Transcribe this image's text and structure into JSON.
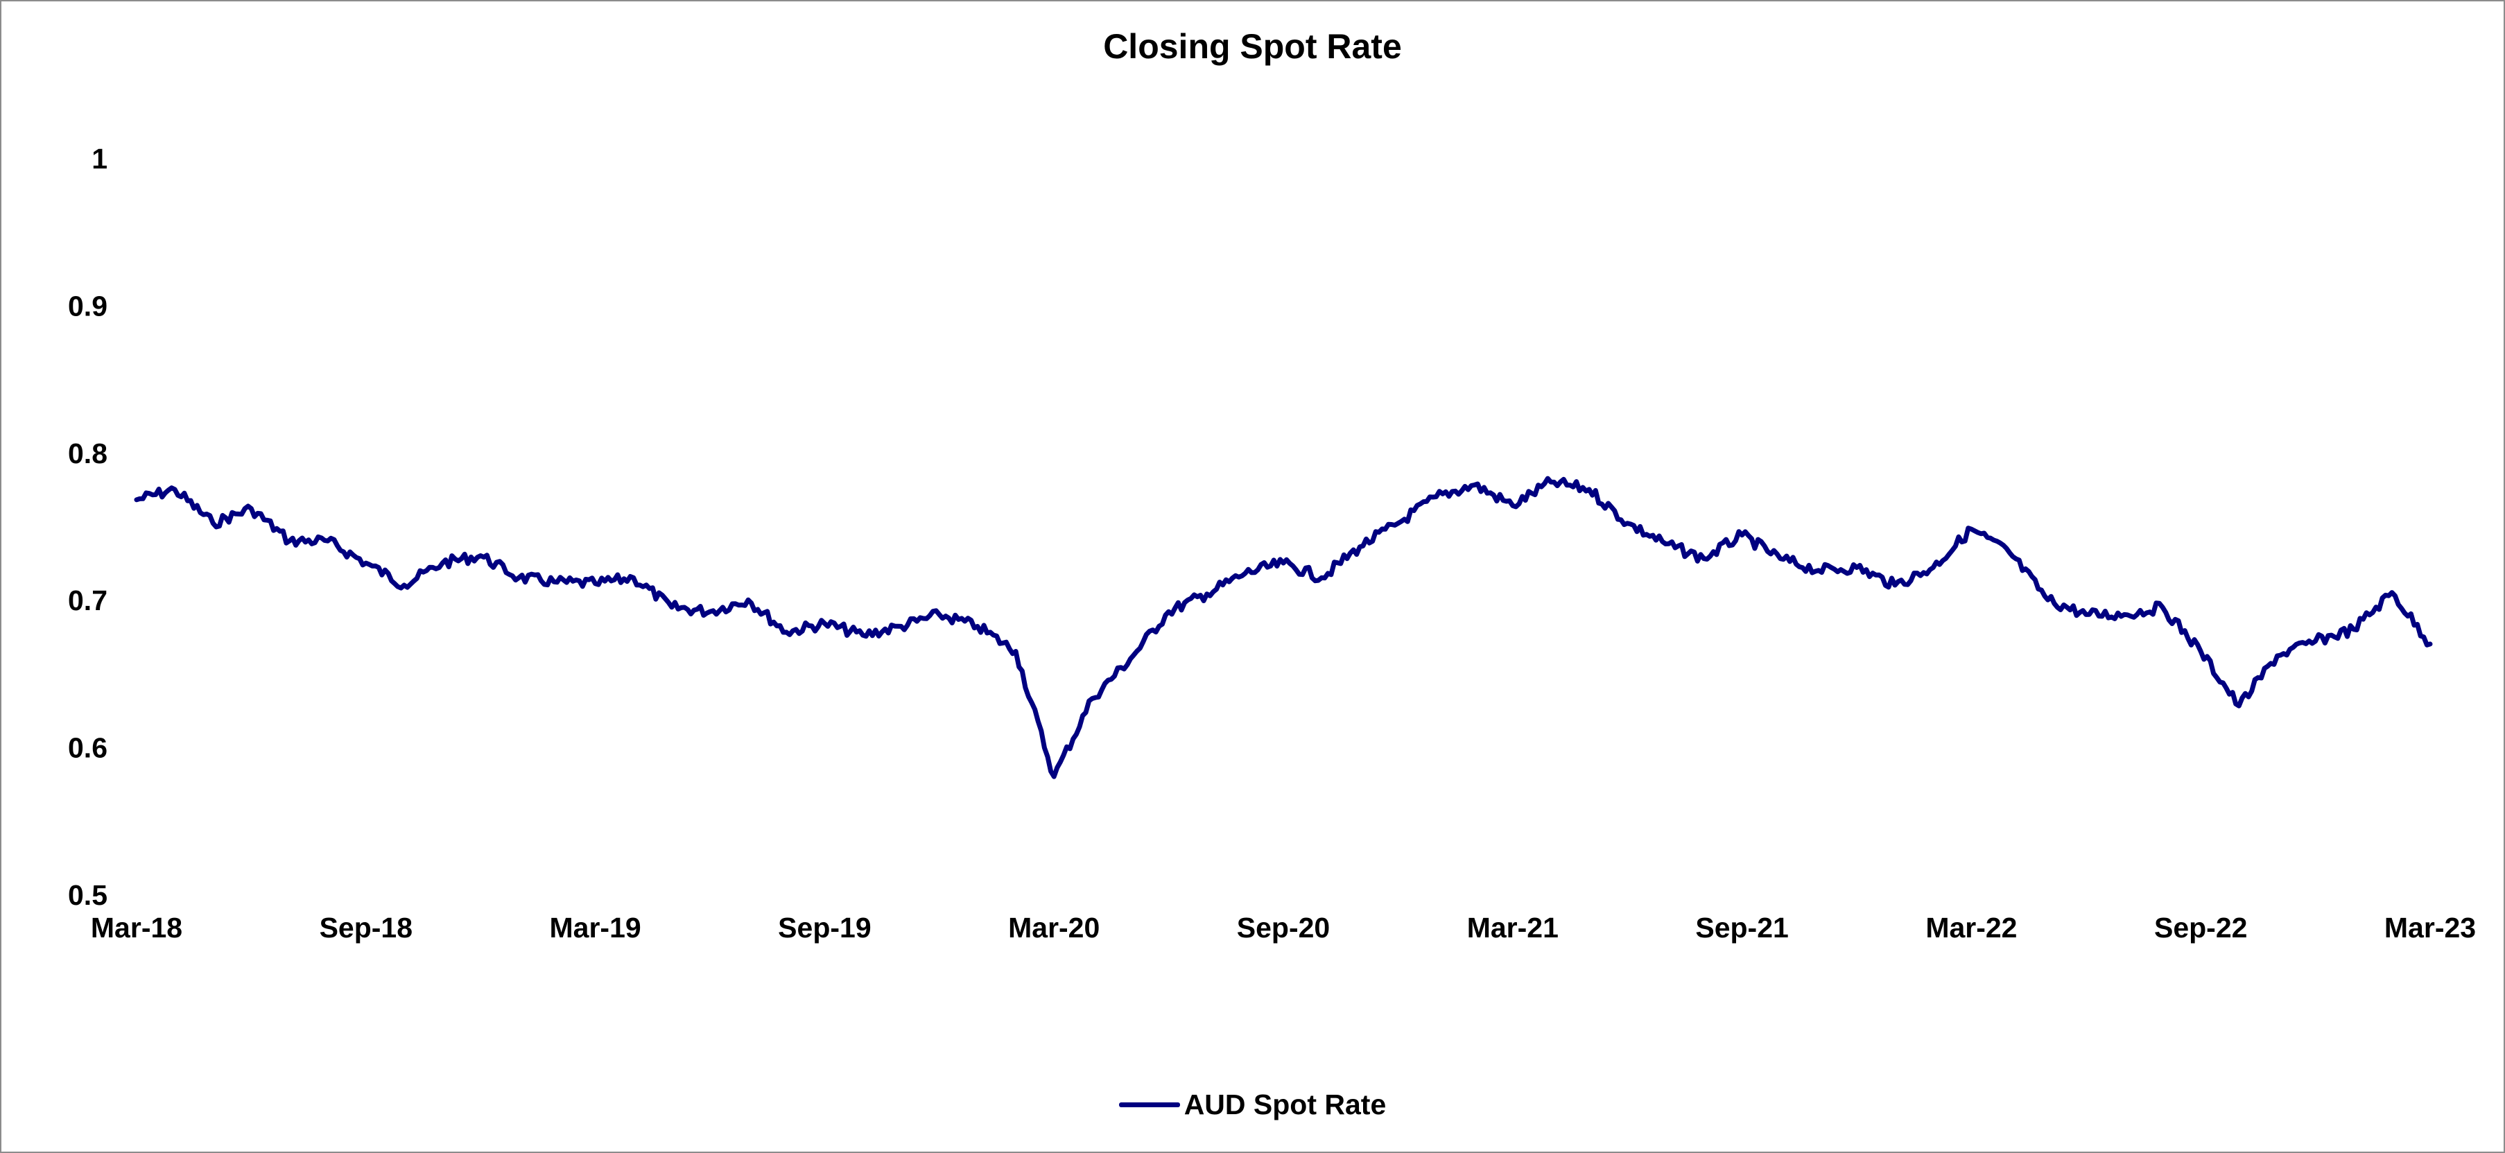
{
  "chart_data": {
    "type": "line",
    "title": "Closing Spot Rate",
    "xlabel": "",
    "ylabel": "",
    "ylim": [
      0.5,
      1.0
    ],
    "y_ticks": [
      "0.5",
      "0.6",
      "0.7",
      "0.8",
      "0.9",
      "1"
    ],
    "x_ticks": [
      "Mar-18",
      "Sep-18",
      "Mar-19",
      "Sep-19",
      "Mar-20",
      "Sep-20",
      "Mar-21",
      "Sep-21",
      "Mar-22",
      "Sep-22",
      "Mar-23"
    ],
    "xlim": [
      "Mar-18",
      "Mar-23"
    ],
    "grid": false,
    "legend_position": "bottom",
    "series": [
      {
        "name": "AUD Spot Rate",
        "color": "#000080",
        "x": [
          "Mar-18",
          "Apr-18",
          "May-18",
          "Jun-18",
          "Jul-18",
          "Aug-18",
          "Sep-18",
          "Oct-18",
          "Nov-18",
          "Dec-18",
          "Jan-19",
          "Feb-19",
          "Mar-19",
          "Apr-19",
          "May-19",
          "Jun-19",
          "Jul-19",
          "Aug-19",
          "Sep-19",
          "Oct-19",
          "Nov-19",
          "Dec-19",
          "Jan-20",
          "Feb-20",
          "Mar-20",
          "Apr-20",
          "May-20",
          "Jun-20",
          "Jul-20",
          "Aug-20",
          "Sep-20",
          "Oct-20",
          "Nov-20",
          "Dec-20",
          "Jan-21",
          "Feb-21",
          "Mar-21",
          "Apr-21",
          "May-21",
          "Jun-21",
          "Jul-21",
          "Aug-21",
          "Sep-21",
          "Oct-21",
          "Nov-21",
          "Dec-21",
          "Jan-22",
          "Feb-22",
          "Mar-22",
          "Apr-22",
          "May-22",
          "Jun-22",
          "Jul-22",
          "Aug-22",
          "Sep-22",
          "Oct-22",
          "Nov-22",
          "Dec-22",
          "Jan-23",
          "Feb-23",
          "Mar-23"
        ],
        "y": [
          0.768,
          0.775,
          0.752,
          0.762,
          0.74,
          0.74,
          0.725,
          0.71,
          0.725,
          0.73,
          0.715,
          0.712,
          0.711,
          0.715,
          0.695,
          0.692,
          0.7,
          0.678,
          0.684,
          0.676,
          0.682,
          0.69,
          0.682,
          0.665,
          0.58,
          0.633,
          0.66,
          0.692,
          0.704,
          0.718,
          0.725,
          0.715,
          0.736,
          0.752,
          0.77,
          0.778,
          0.764,
          0.78,
          0.775,
          0.752,
          0.738,
          0.728,
          0.744,
          0.728,
          0.72,
          0.722,
          0.71,
          0.722,
          0.748,
          0.732,
          0.7,
          0.69,
          0.69,
          0.695,
          0.665,
          0.628,
          0.662,
          0.672,
          0.68,
          0.705,
          0.67
        ]
      }
    ]
  }
}
